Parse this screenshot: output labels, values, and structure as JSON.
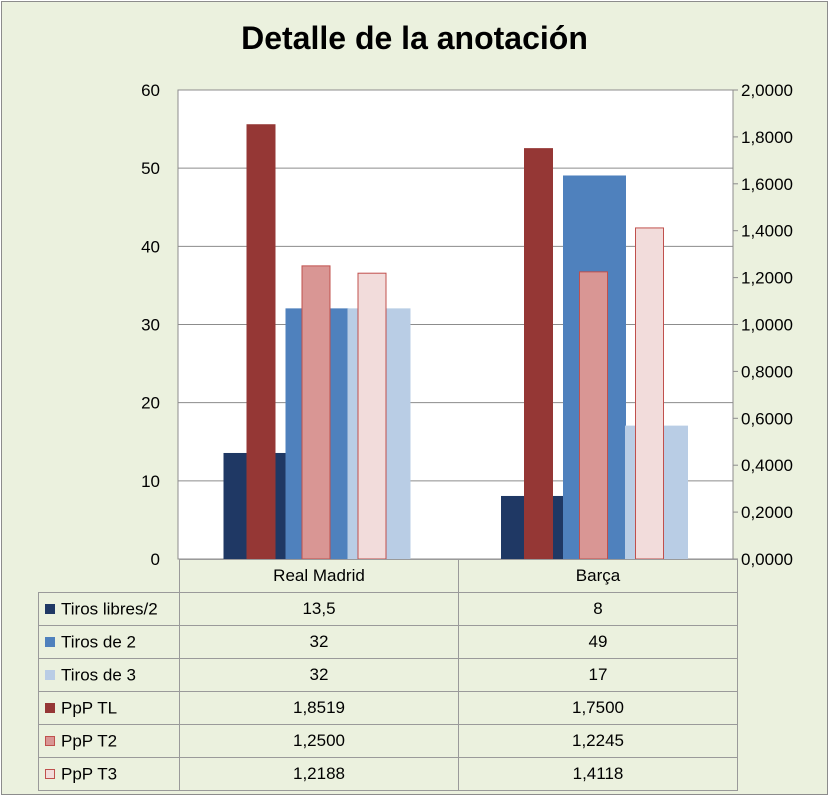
{
  "chart_data": {
    "type": "bar",
    "title": "Detalle de la anotación",
    "categories": [
      "Real Madrid",
      "Barça"
    ],
    "primary_axis": {
      "min": 0,
      "max": 60,
      "ticks": [
        "0",
        "10",
        "20",
        "30",
        "40",
        "50",
        "60"
      ]
    },
    "secondary_axis": {
      "min": 0,
      "max": 2,
      "ticks": [
        "0,0000",
        "0,2000",
        "0,4000",
        "0,6000",
        "0,8000",
        "1,0000",
        "1,2000",
        "1,4000",
        "1,6000",
        "1,8000",
        "2,0000"
      ]
    },
    "grid": true,
    "legend": "data-table",
    "series": [
      {
        "name": "Tiros libres/2",
        "axis": "primary",
        "color": "#1f3864",
        "border": "#1f3864",
        "values": [
          13.5,
          8
        ],
        "labels": [
          "13,5",
          "8"
        ]
      },
      {
        "name": "Tiros de 2",
        "axis": "primary",
        "color": "#4f81bd",
        "border": "#4f81bd",
        "values": [
          32,
          49
        ],
        "labels": [
          "32",
          "49"
        ]
      },
      {
        "name": "Tiros de 3",
        "axis": "primary",
        "color": "#b9cde5",
        "border": "#b9cde5",
        "values": [
          32,
          17
        ],
        "labels": [
          "32",
          "17"
        ]
      },
      {
        "name": "PpP TL",
        "axis": "secondary",
        "color": "#953735",
        "border": "#953735",
        "values": [
          1.8519,
          1.75
        ],
        "labels": [
          "1,8519",
          "1,7500"
        ]
      },
      {
        "name": "PpP T2",
        "axis": "secondary",
        "color": "#d99694",
        "border": "#c0504d",
        "values": [
          1.25,
          1.2245
        ],
        "labels": [
          "1,2500",
          "1,2245"
        ]
      },
      {
        "name": "PpP T3",
        "axis": "secondary",
        "color": "#f2dcdb",
        "border": "#c0504d",
        "values": [
          1.2188,
          1.4118
        ],
        "labels": [
          "1,2188",
          "1,4118"
        ]
      }
    ]
  }
}
